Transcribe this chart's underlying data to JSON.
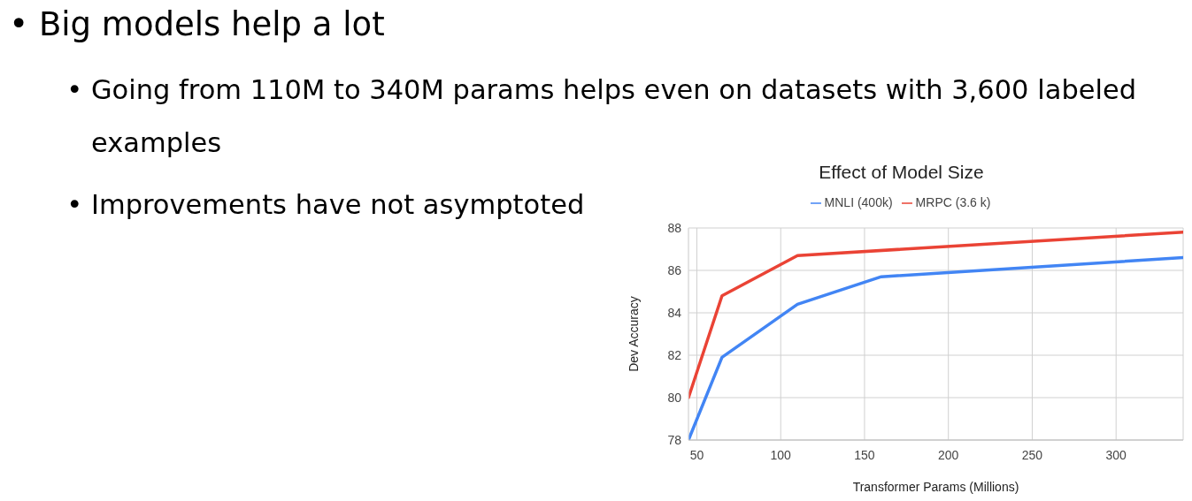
{
  "chart_data": {
    "type": "line",
    "title": "Effect of Model Size",
    "xlabel": "Transformer Params (Millions)",
    "ylabel": "Dev Accuracy",
    "annotations": [
      "• Big models help a lot",
      "• Going from 110M to 340M params helps even on datasets with 3,600 labeled examples",
      "• Improvements have not asymptoted"
    ],
    "series": [
      {
        "name": "MNLI (400k)",
        "color": "#4285f4",
        "x": [
          45,
          65,
          110,
          160,
          340
        ],
        "values": [
          78,
          81.9,
          84.4,
          85.7,
          86.6
        ]
      },
      {
        "name": "MRPC (3.6 k)",
        "color": "#ea4335",
        "x": [
          45,
          65,
          110,
          340
        ],
        "values": [
          80,
          84.8,
          86.7,
          87.8
        ]
      }
    ],
    "xlim": [
      45,
      340
    ],
    "xticks": [
      50,
      100,
      150,
      200,
      250,
      300
    ],
    "ylim": [
      78,
      88
    ],
    "yticks": [
      78,
      80,
      82,
      84,
      86,
      88
    ],
    "grid": true,
    "legend": "top",
    "marker": "none",
    "line_style": "solid"
  }
}
